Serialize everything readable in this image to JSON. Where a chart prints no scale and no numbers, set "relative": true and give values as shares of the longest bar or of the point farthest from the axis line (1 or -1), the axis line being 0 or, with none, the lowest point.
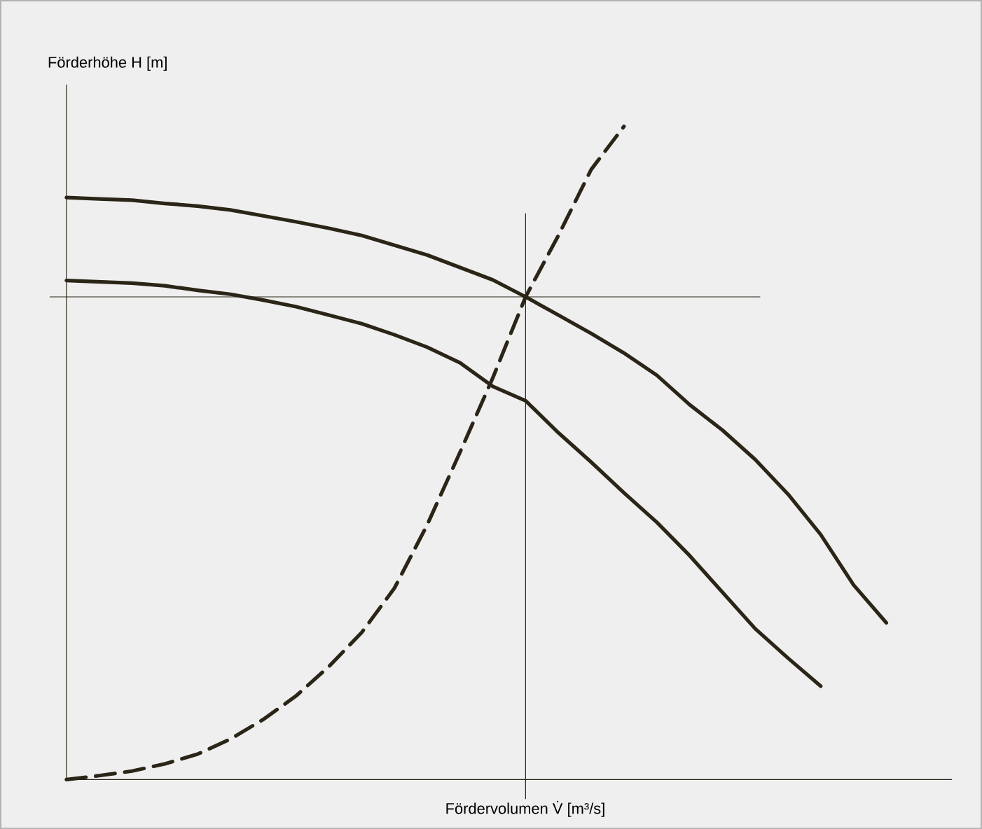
{
  "chart_data": {
    "type": "line",
    "relative": true,
    "xlabel": "Fördervolumen V̇ [m³/s]",
    "ylabel": "Förderhöhe H [m]",
    "marker": "none",
    "categories": [
      null,
      null,
      null,
      null,
      null,
      null,
      null,
      null,
      null,
      null,
      null,
      null,
      null,
      null,
      null,
      null,
      null,
      null,
      null,
      null,
      null,
      null,
      null,
      null,
      null,
      null,
      null,
      null
    ],
    "series": [
      {
        "color": "#2b2518",
        "line_style": "solid",
        "values": [
          0.891,
          0.889,
          0.887,
          0.882,
          0.878,
          0.872,
          0.863,
          0.854,
          0.844,
          0.833,
          0.818,
          0.803,
          0.784,
          0.765,
          0.739,
          0.711,
          0.683,
          0.653,
          0.619,
          0.574,
          0.535,
          0.49,
          0.437,
          0.375,
          0.298,
          0.24,
          null,
          null
        ]
      },
      {
        "color": "#2b2518",
        "line_style": "solid",
        "values": [
          0.764,
          0.762,
          0.76,
          0.756,
          0.749,
          0.743,
          0.734,
          0.724,
          0.711,
          0.698,
          0.681,
          0.662,
          0.638,
          0.602,
          0.58,
          0.531,
          0.486,
          0.439,
          0.394,
          0.343,
          0.287,
          0.231,
          0.186,
          0.143,
          null,
          null,
          null,
          null
        ]
      },
      {
        "color": "#2b2518",
        "line_style": "dashed",
        "values": [
          0,
          0.006,
          0.013,
          0.024,
          0.039,
          0.062,
          0.092,
          0.128,
          0.173,
          0.225,
          0.293,
          0.39,
          0.501,
          0.615,
          0.739,
          0.833,
          0.934,
          1,
          null,
          null,
          null,
          null,
          null,
          null,
          null,
          null,
          null,
          null
        ]
      }
    ],
    "ref_lines": [
      {
        "axis": "y",
        "value": 0.739,
        "color": "#2b2518"
      }
    ]
  }
}
